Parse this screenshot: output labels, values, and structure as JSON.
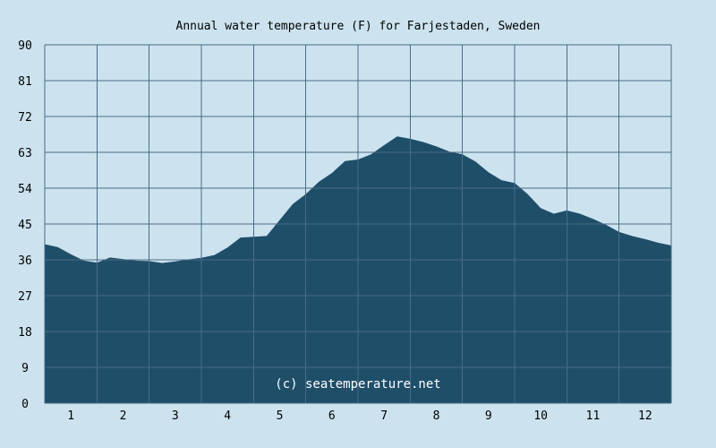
{
  "colors": {
    "background": "#cce3ef",
    "area_fill": "#1f4e69",
    "grid": "#4a6b86",
    "text": "#000000",
    "watermark": "#ffffff"
  },
  "watermark": "(c) seatemperature.net",
  "chart_data": {
    "type": "area",
    "title": "Annual water temperature (F) for Farjestaden, Sweden",
    "xlabel": "",
    "ylabel": "",
    "ylim": [
      0,
      90
    ],
    "yticks": [
      "0",
      "9",
      "18",
      "27",
      "36",
      "45",
      "54",
      "63",
      "72",
      "81",
      "90"
    ],
    "xtick_labels": [
      "1",
      "2",
      "3",
      "4",
      "5",
      "6",
      "7",
      "8",
      "9",
      "10",
      "11",
      "12"
    ],
    "xlim": [
      0.5,
      12.5
    ],
    "grid": true,
    "x": [
      0.5,
      0.75,
      1.0,
      1.25,
      1.5,
      1.75,
      2.0,
      2.25,
      2.5,
      2.75,
      3.0,
      3.25,
      3.5,
      3.75,
      4.0,
      4.25,
      4.5,
      4.75,
      5.0,
      5.25,
      5.5,
      5.75,
      6.0,
      6.25,
      6.5,
      6.75,
      7.0,
      7.25,
      7.5,
      7.75,
      8.0,
      8.25,
      8.5,
      8.75,
      9.0,
      9.25,
      9.5,
      9.75,
      10.0,
      10.25,
      10.5,
      10.75,
      11.0,
      11.25,
      11.5,
      11.75,
      12.0,
      12.25,
      12.5
    ],
    "series": [
      {
        "values": [
          39.9,
          39.2,
          37.4,
          35.8,
          35.3,
          36.6,
          36.2,
          35.8,
          35.7,
          35.2,
          35.6,
          36.1,
          36.5,
          37.2,
          39.1,
          41.6,
          41.8,
          42.0,
          46.0,
          50.0,
          52.5,
          55.6,
          57.8,
          60.8,
          61.2,
          62.5,
          64.8,
          67.0,
          66.4,
          65.6,
          64.5,
          63.2,
          62.5,
          60.7,
          58.0,
          56.0,
          55.3,
          52.5,
          49.0,
          47.6,
          48.4,
          47.6,
          46.3,
          44.8,
          43.0,
          42.0,
          41.2,
          40.3,
          39.6
        ]
      }
    ]
  }
}
